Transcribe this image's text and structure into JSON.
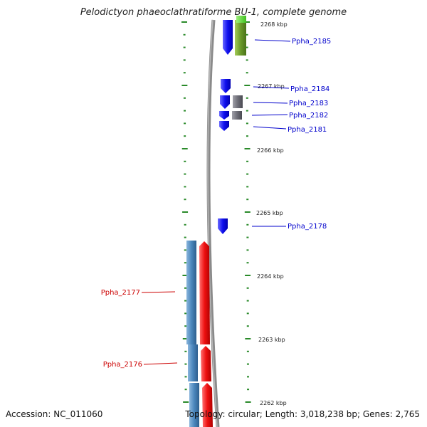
{
  "title": "Pelodictyon phaeoclathratiforme BU-1, complete genome",
  "footer": {
    "accession": "Accession: NC_011060",
    "topology": "Topology: circular; Length: 3,018,238 bp; Genes: 2,765"
  },
  "scale": {
    "units": "kbp",
    "ticks": [
      "2268 kbp",
      "2267 kbp",
      "2266 kbp",
      "2265 kbp",
      "2264 kbp",
      "2263 kbp",
      "2262 kbp"
    ]
  },
  "genes": {
    "forward": [
      "Ppha_2185",
      "Ppha_2184",
      "Ppha_2183",
      "Ppha_2182",
      "Ppha_2181",
      "Ppha_2178"
    ],
    "reverse": [
      "Ppha_2177",
      "Ppha_2176"
    ]
  },
  "colors": {
    "forward_cds": "#1010ee",
    "reverse_cds": "#ee1010",
    "rna_green": "#6a9a2a",
    "gray_feature": "#6e6e78",
    "steel_blue": "#4a86bc",
    "backbone": "#8a8a8a",
    "tick_green": "#2a8a2a",
    "forward_label": "#0000cc",
    "reverse_label": "#cc0000"
  }
}
